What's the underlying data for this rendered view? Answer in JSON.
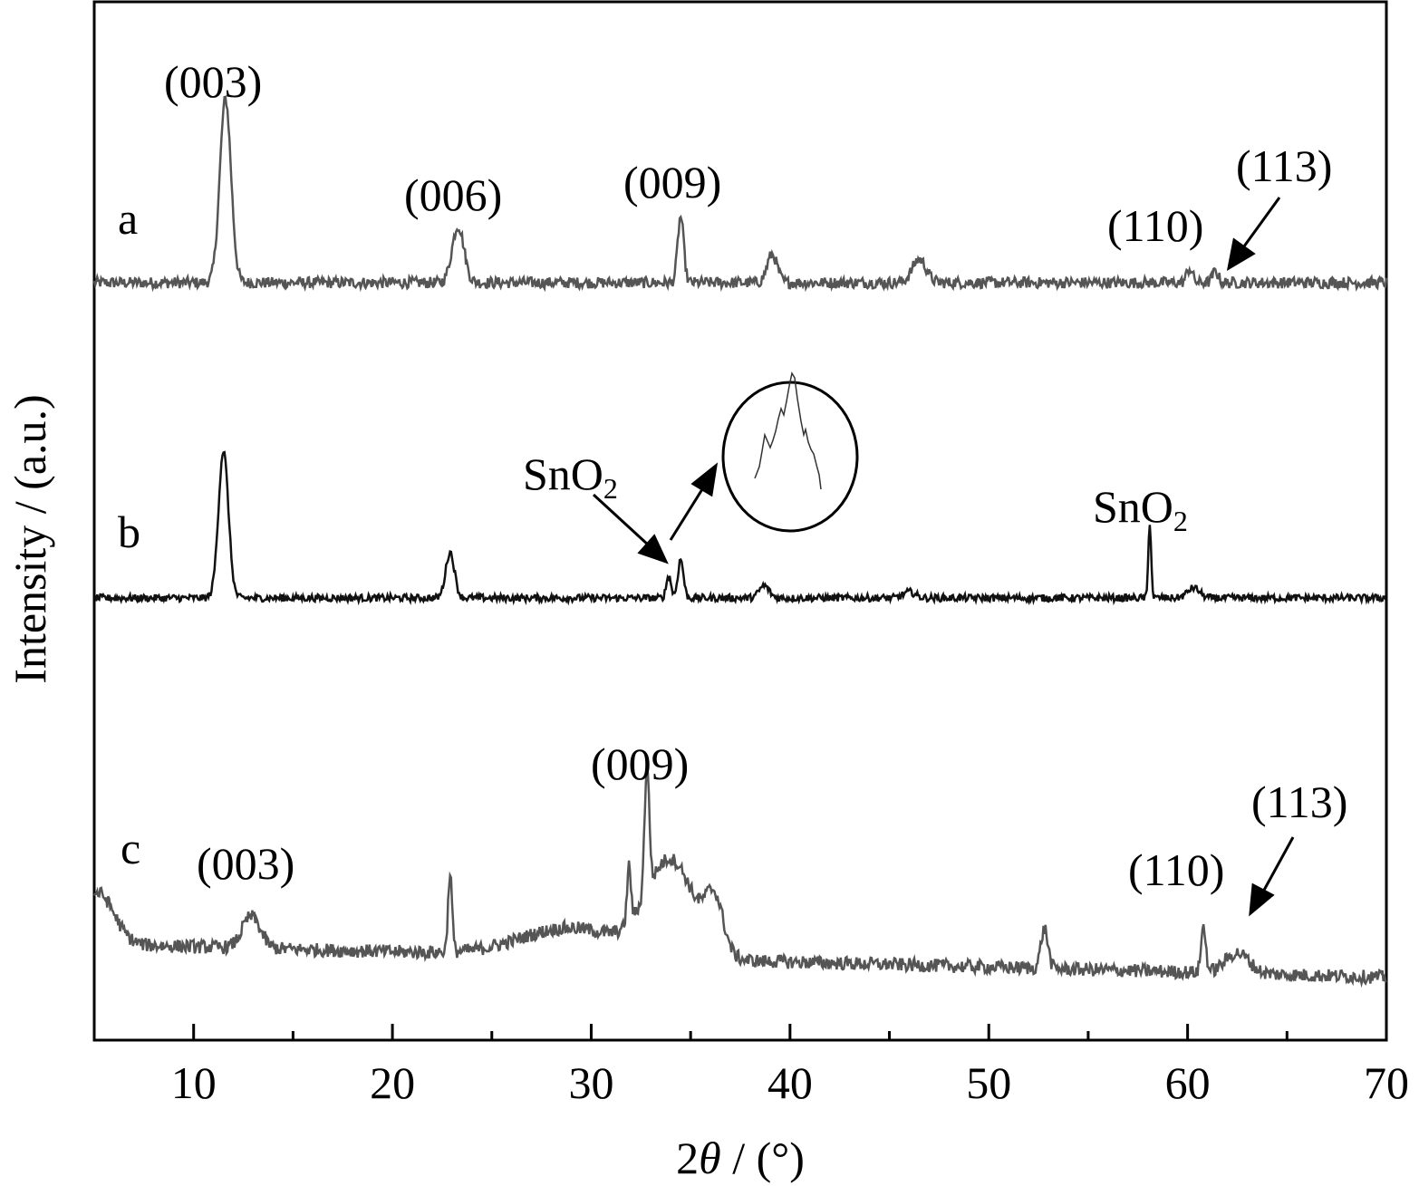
{
  "chart_data": {
    "type": "line",
    "xlabel_prefix": "2",
    "xlabel_symbol": "θ",
    "xlabel_suffix": " / (°)",
    "ylabel": "Intensity / (a.u.)",
    "xlim": [
      5,
      70
    ],
    "x_ticks": [
      10,
      20,
      30,
      40,
      50,
      60,
      70
    ],
    "x_minor_ticks": [
      15,
      25,
      35,
      45,
      55,
      65
    ],
    "y_ticks_shown": false,
    "grid": false,
    "colors": {
      "a": "#555555",
      "b": "#111111",
      "c": "#555555"
    },
    "series": [
      {
        "name": "a",
        "baseline": 0.12,
        "noise": 0.06,
        "peaks": [
          {
            "x": 11.6,
            "h": 1.95,
            "w": 0.28
          },
          {
            "x": 23.3,
            "h": 0.6,
            "w": 0.3
          },
          {
            "x": 34.5,
            "h": 0.7,
            "w": 0.15
          },
          {
            "x": 39.1,
            "h": 0.3,
            "w": 0.25
          },
          {
            "x": 46.5,
            "h": 0.25,
            "w": 0.35
          },
          {
            "x": 60.1,
            "h": 0.15,
            "w": 0.15
          },
          {
            "x": 61.4,
            "h": 0.12,
            "w": 0.15
          }
        ]
      },
      {
        "name": "b",
        "baseline": 0.0,
        "noise": 0.035,
        "peaks": [
          {
            "x": 11.5,
            "h": 1.45,
            "w": 0.25
          },
          {
            "x": 22.9,
            "h": 0.45,
            "w": 0.22
          },
          {
            "x": 33.9,
            "h": 0.22,
            "w": 0.12
          },
          {
            "x": 34.5,
            "h": 0.38,
            "w": 0.14
          },
          {
            "x": 38.7,
            "h": 0.12,
            "w": 0.25
          },
          {
            "x": 46.0,
            "h": 0.06,
            "w": 0.3
          },
          {
            "x": 58.1,
            "h": 0.75,
            "w": 0.07
          },
          {
            "x": 60.3,
            "h": 0.1,
            "w": 0.3
          }
        ]
      },
      {
        "name": "c",
        "baseline": 0.05,
        "noise": 0.06,
        "peaks": [
          {
            "x": 5.2,
            "h": 0.45,
            "w": 0.8
          },
          {
            "x": 12.9,
            "h": 0.28,
            "w": 0.45
          },
          {
            "x": 22.9,
            "h": 0.7,
            "w": 0.1
          },
          {
            "x": 31.9,
            "h": 0.5,
            "w": 0.1
          },
          {
            "x": 32.8,
            "h": 1.1,
            "w": 0.12
          },
          {
            "x": 34.0,
            "h": 0.85,
            "w": 1.2
          },
          {
            "x": 36.2,
            "h": 0.45,
            "w": 0.45
          },
          {
            "x": 29.0,
            "h": 0.25,
            "w": 2.5
          },
          {
            "x": 52.8,
            "h": 0.35,
            "w": 0.18
          },
          {
            "x": 60.8,
            "h": 0.4,
            "w": 0.12
          },
          {
            "x": 62.5,
            "h": 0.18,
            "w": 0.6
          }
        ]
      }
    ],
    "series_labels": [
      "a",
      "b",
      "c"
    ],
    "annotations": {
      "a_003": "(003)",
      "a_006": "(006)",
      "a_009": "(009)",
      "a_110": "(110)",
      "a_113": "(113)",
      "b_sno2_left": "SnO",
      "b_sno2_right": "SnO",
      "sno2_subscript": "2",
      "c_003": "(003)",
      "c_009": "(009)",
      "c_110": "(110)",
      "c_113": "(113)"
    }
  }
}
